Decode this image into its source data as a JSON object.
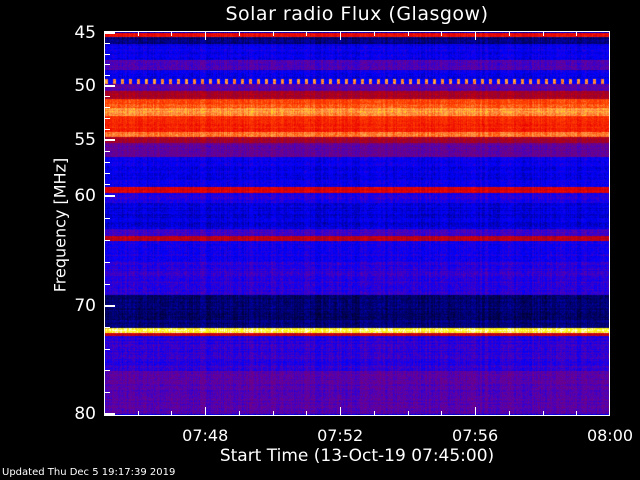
{
  "chart_data": {
    "type": "heatmap",
    "title": "Solar radio Flux (Glasgow)",
    "xlabel": "Start Time (13-Oct-19 07:45:00)",
    "ylabel": "Frequency [MHz]",
    "xlim": [
      "07:45",
      "08:00"
    ],
    "ylim": [
      45,
      80
    ],
    "y_inverted": true,
    "x_ticks": [
      "07:48",
      "07:52",
      "07:56",
      "08:00"
    ],
    "y_ticks": [
      "45",
      "50",
      "55",
      "60",
      "70",
      "80"
    ],
    "colormap": "blue-purple-red-yellow-white",
    "bands": [
      {
        "from": 45.0,
        "to": 45.4,
        "level": 0.68
      },
      {
        "from": 45.4,
        "to": 46.0,
        "level": 0.12
      },
      {
        "from": 46.0,
        "to": 47.5,
        "level": 0.25
      },
      {
        "from": 47.5,
        "to": 48.5,
        "level": 0.36
      },
      {
        "from": 48.5,
        "to": 49.3,
        "level": 0.24
      },
      {
        "from": 49.3,
        "to": 49.8,
        "level": 0.8,
        "pattern": "intermittent"
      },
      {
        "from": 49.8,
        "to": 50.5,
        "level": 0.36
      },
      {
        "from": 50.5,
        "to": 51.2,
        "level": 0.55
      },
      {
        "from": 51.2,
        "to": 52.0,
        "level": 0.78
      },
      {
        "from": 52.0,
        "to": 52.8,
        "level": 0.86
      },
      {
        "from": 52.8,
        "to": 54.3,
        "level": 0.72
      },
      {
        "from": 54.3,
        "to": 54.7,
        "level": 0.83
      },
      {
        "from": 54.7,
        "to": 55.3,
        "level": 0.55
      },
      {
        "from": 55.3,
        "to": 56.5,
        "level": 0.38
      },
      {
        "from": 56.5,
        "to": 59.2,
        "level": 0.24
      },
      {
        "from": 59.2,
        "to": 59.7,
        "level": 0.63
      },
      {
        "from": 59.7,
        "to": 60.6,
        "level": 0.28
      },
      {
        "from": 60.6,
        "to": 63.0,
        "level": 0.22
      },
      {
        "from": 63.0,
        "to": 63.6,
        "level": 0.33
      },
      {
        "from": 63.6,
        "to": 64.1,
        "level": 0.6
      },
      {
        "from": 64.1,
        "to": 66.0,
        "level": 0.27
      },
      {
        "from": 66.0,
        "to": 69.0,
        "level": 0.3
      },
      {
        "from": 69.0,
        "to": 72.0,
        "level": 0.12
      },
      {
        "from": 72.0,
        "to": 72.5,
        "level": 0.96
      },
      {
        "from": 72.5,
        "to": 72.8,
        "level": 0.6
      },
      {
        "from": 72.8,
        "to": 76.0,
        "level": 0.3
      },
      {
        "from": 76.0,
        "to": 80.0,
        "level": 0.36
      }
    ]
  },
  "footer": {
    "updated": "Updated Thu Dec  5 19:17:39 2019"
  }
}
